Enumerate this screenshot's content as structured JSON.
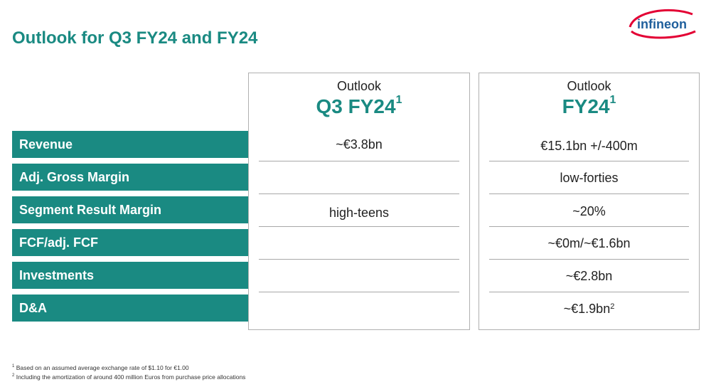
{
  "slide": {
    "title": "Outlook for Q3 FY24 and FY24",
    "logo_text": "infineon",
    "brand_color": "#1a8a82",
    "logo_swoosh_color": "#e30034"
  },
  "rows": [
    "Revenue",
    "Adj. Gross Margin",
    "Segment Result Margin",
    "FCF/adj. FCF",
    "Investments",
    "D&A"
  ],
  "columns": [
    {
      "caption": "Outlook",
      "period": "Q3 FY24",
      "period_sup": "1",
      "values": [
        "~€3.8bn",
        "",
        "high-teens",
        "",
        "",
        ""
      ]
    },
    {
      "caption": "Outlook",
      "period": "FY24",
      "period_sup": "1",
      "values": [
        "€15.1bn +/-400m",
        "low-forties",
        "~20%",
        "~€0m/~€1.6bn",
        "~€2.8bn",
        "~€1.9bn"
      ],
      "last_value_sup": "2"
    }
  ],
  "footnotes": [
    {
      "mark": "1",
      "text": "Based on an assumed average exchange rate of $1.10 for €1.00"
    },
    {
      "mark": "2",
      "text": "Including the amortization of around 400 million Euros from purchase price allocations"
    }
  ]
}
